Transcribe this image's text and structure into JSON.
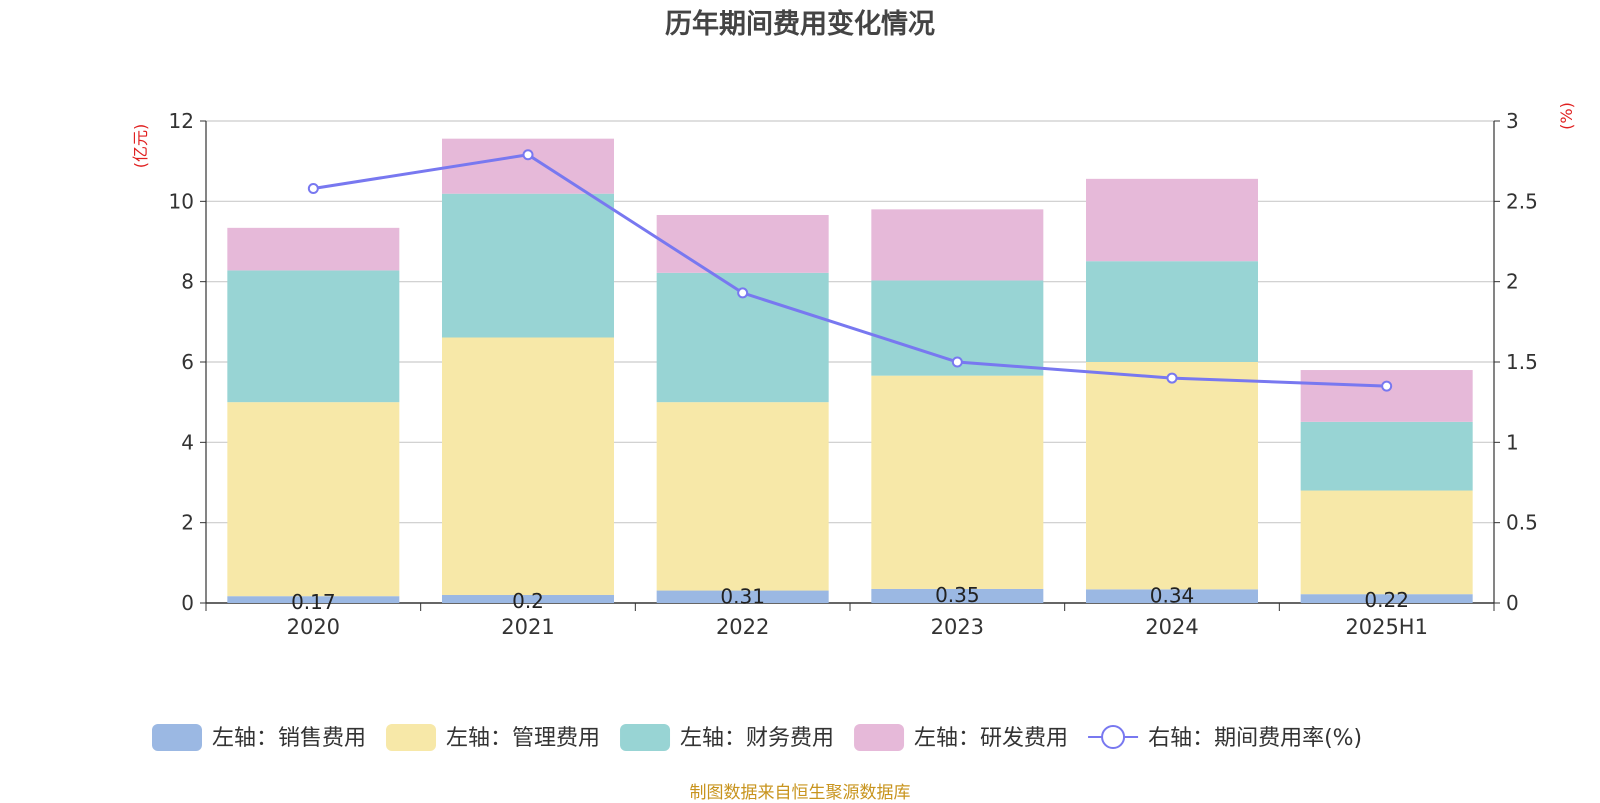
{
  "source": "制图数据来自恒生聚源数据库",
  "chart_data": {
    "type": "bar",
    "title": "历年期间费用变化情况",
    "y_left_label": "(亿元)",
    "y_right_label": "(%)",
    "y_left_ticks": [
      "0",
      "2",
      "4",
      "6",
      "8",
      "10",
      "12"
    ],
    "y_right_ticks": [
      "0",
      "0.5",
      "1",
      "1.5",
      "2",
      "2.5",
      "3"
    ],
    "ylim_left": [
      0,
      12
    ],
    "ylim_right": [
      0,
      3
    ],
    "grid": true,
    "legend_position": "bottom",
    "categories": [
      "2020",
      "2021",
      "2022",
      "2023",
      "2024",
      "2025H1"
    ],
    "series": [
      {
        "name": "左轴：销售费用",
        "kind": "bar",
        "axis": "left",
        "color": "#9bb8e3",
        "values": [
          0.17,
          0.2,
          0.31,
          0.35,
          0.34,
          0.22
        ],
        "labels": [
          "0.17",
          "0.2",
          "0.31",
          "0.35",
          "0.34",
          "0.22"
        ]
      },
      {
        "name": "左轴：管理费用",
        "kind": "bar",
        "axis": "left",
        "color": "#f7e8a8",
        "values": [
          4.83,
          6.41,
          4.69,
          5.31,
          5.66,
          2.58
        ]
      },
      {
        "name": "左轴：财务费用",
        "kind": "bar",
        "axis": "left",
        "color": "#98d4d4",
        "values": [
          3.28,
          3.58,
          3.22,
          2.37,
          2.51,
          1.71
        ]
      },
      {
        "name": "左轴：研发费用",
        "kind": "bar",
        "axis": "left",
        "color": "#e6b9d9",
        "values": [
          1.06,
          1.37,
          1.44,
          1.77,
          2.05,
          1.29
        ]
      },
      {
        "name": "右轴：期间费用率(%)",
        "kind": "line",
        "axis": "right",
        "color": "#7878f0",
        "values": [
          2.58,
          2.79,
          1.93,
          1.5,
          1.4,
          1.35
        ]
      }
    ]
  }
}
